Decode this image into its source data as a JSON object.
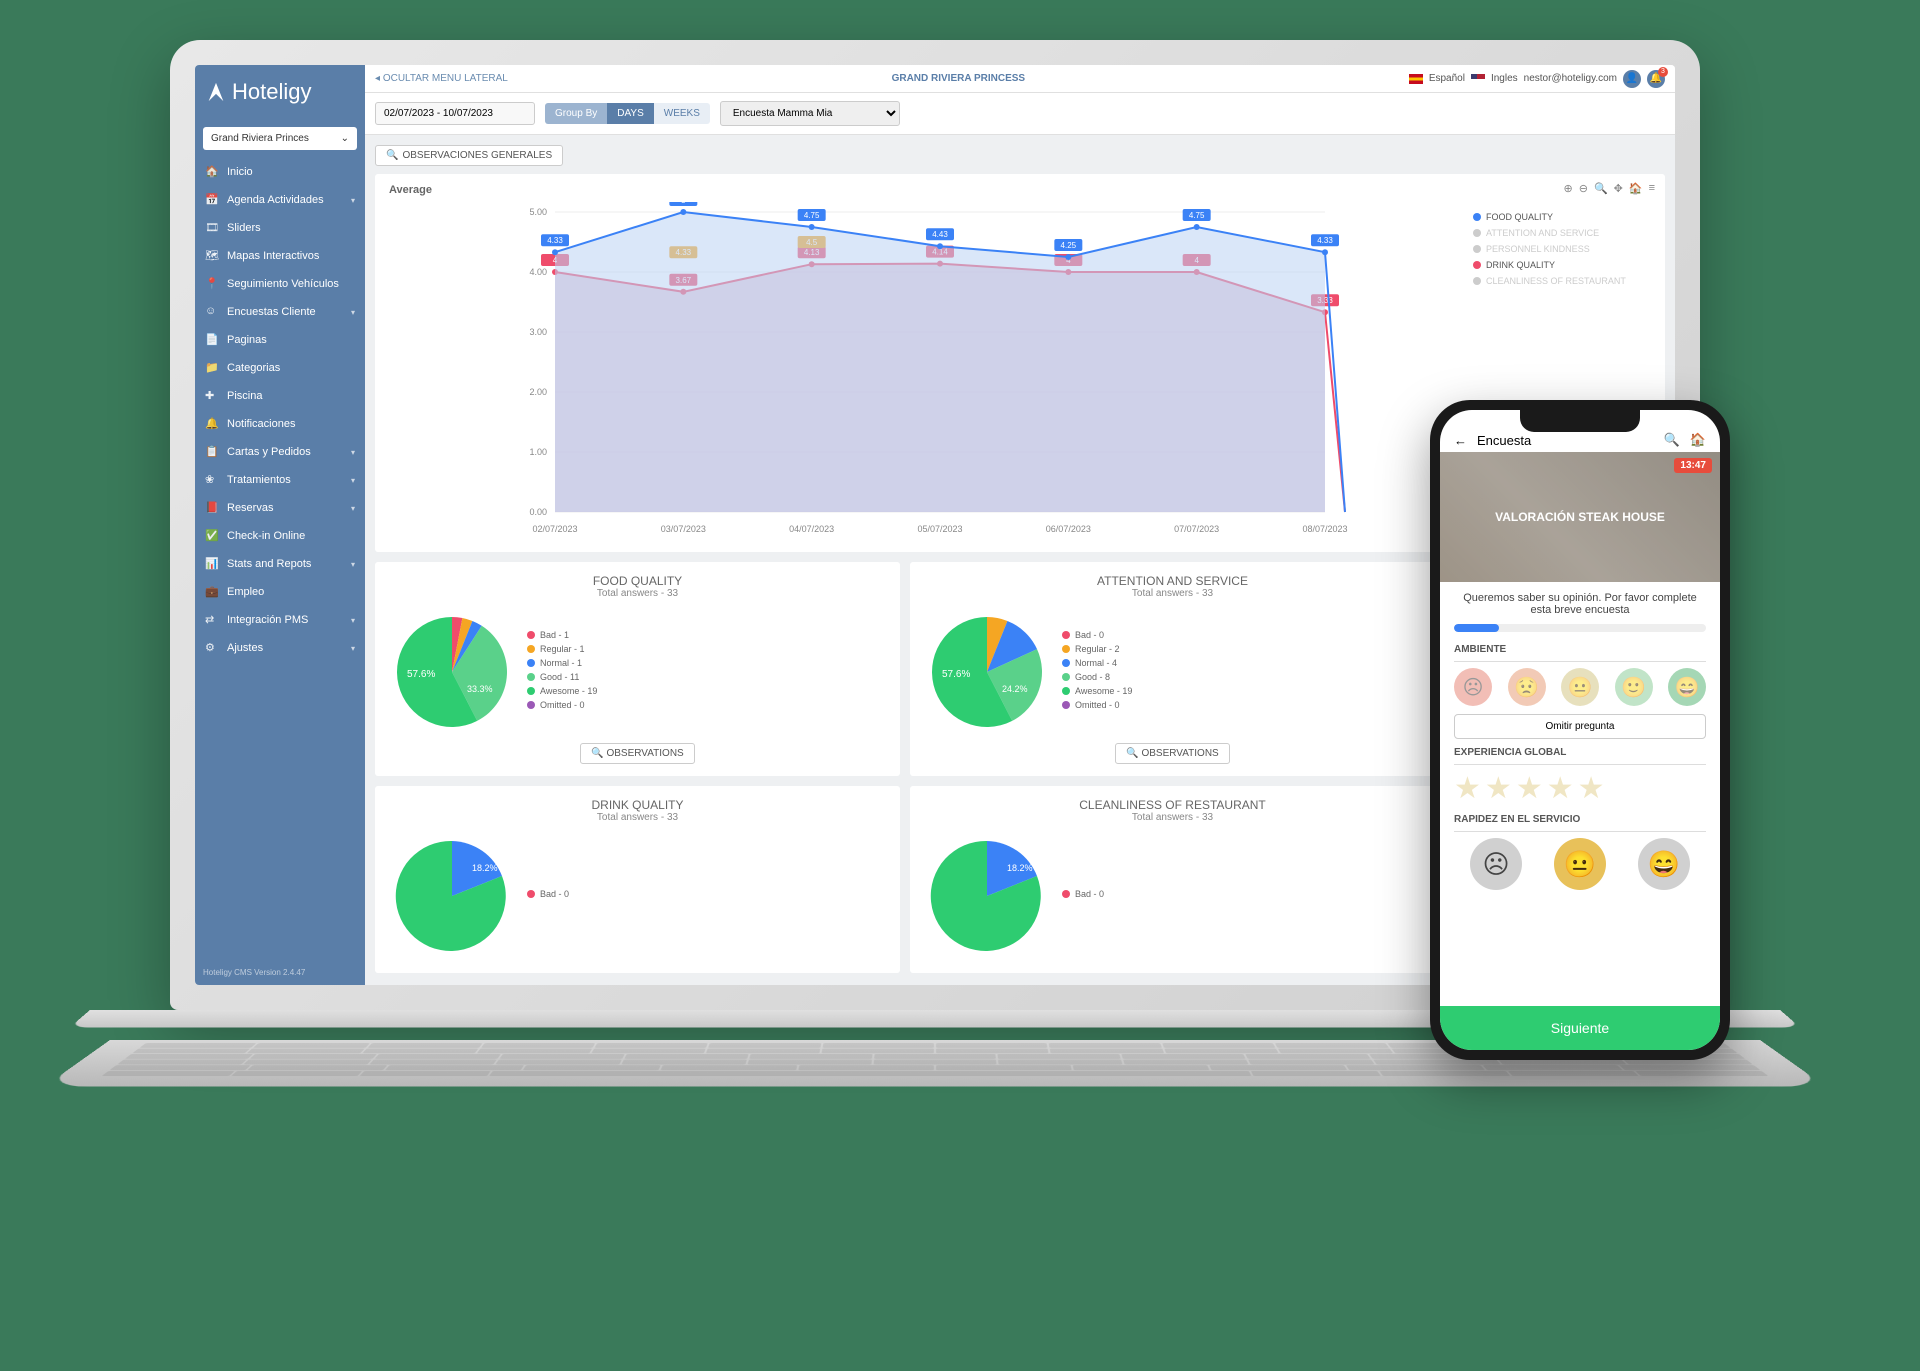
{
  "brand": "Hoteligy",
  "topbar": {
    "hide_menu": "OCULTAR MENU LATERAL",
    "hotel_title": "GRAND RIVIERA PRINCESS",
    "lang_es": "Español",
    "lang_en": "Ingles",
    "user_email": "nestor@hoteligy.com",
    "notif_count": "3"
  },
  "hotel_select": "Grand Riviera Princes",
  "nav": [
    {
      "icon": "home",
      "label": "Inicio",
      "sub": false
    },
    {
      "icon": "calendar",
      "label": "Agenda Actividades",
      "sub": true
    },
    {
      "icon": "sliders",
      "label": "Sliders",
      "sub": false
    },
    {
      "icon": "map",
      "label": "Mapas Interactivos",
      "sub": false
    },
    {
      "icon": "car",
      "label": "Seguimiento Vehículos",
      "sub": false
    },
    {
      "icon": "smile",
      "label": "Encuestas Cliente",
      "sub": true
    },
    {
      "icon": "page",
      "label": "Paginas",
      "sub": false
    },
    {
      "icon": "cat",
      "label": "Categorias",
      "sub": false
    },
    {
      "icon": "pool",
      "label": "Piscina",
      "sub": false
    },
    {
      "icon": "bell",
      "label": "Notificaciones",
      "sub": false
    },
    {
      "icon": "menu",
      "label": "Cartas y Pedidos",
      "sub": true
    },
    {
      "icon": "spa",
      "label": "Tratamientos",
      "sub": true
    },
    {
      "icon": "book",
      "label": "Reservas",
      "sub": true
    },
    {
      "icon": "check",
      "label": "Check-in Online",
      "sub": false
    },
    {
      "icon": "stats",
      "label": "Stats and Repots",
      "sub": true
    },
    {
      "icon": "job",
      "label": "Empleo",
      "sub": false
    },
    {
      "icon": "pms",
      "label": "Integración PMS",
      "sub": true
    },
    {
      "icon": "gear",
      "label": "Ajustes",
      "sub": true
    }
  ],
  "sidebar_footer": "Hoteligy CMS Version 2.4.47",
  "controls": {
    "date_range": "02/07/2023 - 10/07/2023",
    "group_by": "Group By",
    "days": "DAYS",
    "weeks": "WEEKS",
    "survey": "Encuesta Mamma Mia"
  },
  "obs_general": "OBSERVACIONES GENERALES",
  "chart": {
    "title": "Average",
    "ylim": [
      0,
      5
    ],
    "ytick_step": 1,
    "background_color": "#ffffff",
    "grid_color": "#eeeeee",
    "x_labels": [
      "02/07/2023",
      "03/07/2023",
      "04/07/2023",
      "05/07/2023",
      "06/07/2023",
      "07/07/2023",
      "08/07/2023"
    ],
    "series": [
      {
        "name": "FOOD QUALITY",
        "color": "#3b82f6",
        "fill": "#bcd4f4",
        "values": [
          4.33,
          5.0,
          4.75,
          4.43,
          4.25,
          4.75,
          4.33
        ],
        "point_labels": [
          "4.33",
          "5",
          "4.75",
          "4.43",
          "4.25",
          "4.75",
          "4.33"
        ],
        "line_width": 2,
        "marker": "circle",
        "marker_size": 4
      },
      {
        "name": "ATTENTION AND SERVICE",
        "color": "#cccccc",
        "values": null
      },
      {
        "name": "PERSONNEL KINDNESS",
        "color": "#cccccc",
        "values": null
      },
      {
        "name": "DRINK QUALITY",
        "color": "#ef4c6b",
        "fill": "#d4a5c0",
        "values": [
          4.0,
          3.67,
          4.13,
          4.14,
          4.0,
          4.0,
          3.33
        ],
        "point_labels": [
          "4",
          "3.67",
          "4.13",
          "4.14",
          "4",
          "4",
          "3.33"
        ],
        "extra_labels": [
          {
            "x": 1,
            "y": 4.33,
            "text": "4.33",
            "color": "#f5a623"
          },
          {
            "x": 2,
            "y": 4.5,
            "text": "4.5",
            "color": "#f5a623"
          }
        ],
        "line_width": 2,
        "marker": "circle",
        "marker_size": 4
      },
      {
        "name": "CLEANLINESS OF RESTAURANT",
        "color": "#cccccc",
        "values": null
      }
    ]
  },
  "pies": [
    {
      "title": "FOOD QUALITY",
      "total_label": "Total answers - 33",
      "obs_label": "OBSERVATIONS",
      "slices": [
        {
          "label": "Bad",
          "count": 1,
          "color": "#ef4c6b"
        },
        {
          "label": "Regular",
          "count": 1,
          "color": "#f5a623"
        },
        {
          "label": "Normal",
          "count": 1,
          "color": "#3b82f6"
        },
        {
          "label": "Good",
          "count": 11,
          "color": "#5ad18a"
        },
        {
          "label": "Awesome",
          "count": 19,
          "color": "#2ecc71"
        },
        {
          "label": "Omitted",
          "count": 0,
          "color": "#9b59b6"
        }
      ],
      "pct_main": "57.6%",
      "pct_second": "33.3%"
    },
    {
      "title": "ATTENTION AND SERVICE",
      "total_label": "Total answers - 33",
      "obs_label": "OBSERVATIONS",
      "slices": [
        {
          "label": "Bad",
          "count": 0,
          "color": "#ef4c6b"
        },
        {
          "label": "Regular",
          "count": 2,
          "color": "#f5a623"
        },
        {
          "label": "Normal",
          "count": 4,
          "color": "#3b82f6"
        },
        {
          "label": "Good",
          "count": 8,
          "color": "#5ad18a"
        },
        {
          "label": "Awesome",
          "count": 19,
          "color": "#2ecc71"
        },
        {
          "label": "Omitted",
          "count": 0,
          "color": "#9b59b6"
        }
      ],
      "pct_main": "57.6%",
      "pct_second": "24.2%"
    },
    {
      "title": "DRINK QUALITY",
      "total_label": "Total answers - 33",
      "slices": [
        {
          "label": "Bad",
          "count": 0,
          "color": "#ef4c6b"
        }
      ]
    },
    {
      "title": "CLEANLINESS OF RESTAURANT",
      "total_label": "Total answers - 33",
      "slices": [
        {
          "label": "Bad",
          "count": 0,
          "color": "#ef4c6b"
        }
      ]
    }
  ],
  "phone": {
    "header_title": "Encuesta",
    "hero_title": "VALORACIÓN STEAK HOUSE",
    "time": "13:47",
    "intro": "Queremos saber su opinión. Por favor complete esta breve encuesta",
    "progress_pct": 18,
    "q1": "AMBIENTE",
    "skip": "Omitir pregunta",
    "q2": "EXPERIENCIA GLOBAL",
    "q3": "RAPIDEZ EN EL SERVICIO",
    "next": "Siguiente",
    "faces5_colors": [
      "#e8897c",
      "#e8a07c",
      "#d4c888",
      "#8fcf9c",
      "#5cb87a"
    ],
    "faces3_colors": [
      "#d0d0d0",
      "#e8c15a",
      "#d0d0d0"
    ],
    "star_color": "#f0e6c4"
  }
}
